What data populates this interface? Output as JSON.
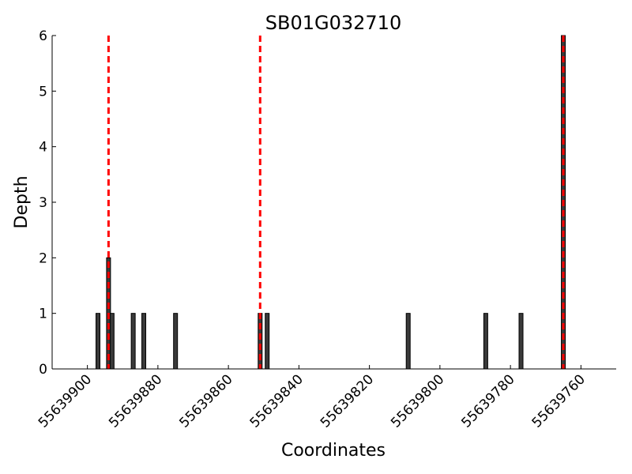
{
  "chart_data": {
    "type": "bar",
    "title": "SB01G032710",
    "xlabel": "Coordinates",
    "ylabel": "Depth",
    "x_axis_reversed": true,
    "xlim": [
      55639910,
      55639750
    ],
    "ylim": [
      0,
      6
    ],
    "grid": false,
    "bar_color": "#3a3a3a",
    "marker_color": "#ff0000",
    "x_ticks": [
      55639900,
      55639880,
      55639860,
      55639840,
      55639820,
      55639800,
      55639780,
      55639760
    ],
    "x_tick_labels": [
      "55639900",
      "55639880",
      "55639860",
      "55639840",
      "55639820",
      "55639800",
      "55639780",
      "55639760"
    ],
    "y_ticks": [
      0,
      1,
      2,
      3,
      4,
      5,
      6
    ],
    "y_tick_labels": [
      "0",
      "1",
      "2",
      "3",
      "4",
      "5",
      "6"
    ],
    "points": [
      {
        "x": 55639897,
        "y": 1
      },
      {
        "x": 55639894,
        "y": 2
      },
      {
        "x": 55639893,
        "y": 1
      },
      {
        "x": 55639887,
        "y": 1
      },
      {
        "x": 55639884,
        "y": 1
      },
      {
        "x": 55639875,
        "y": 1
      },
      {
        "x": 55639851,
        "y": 1
      },
      {
        "x": 55639849,
        "y": 1
      },
      {
        "x": 55639809,
        "y": 1
      },
      {
        "x": 55639787,
        "y": 1
      },
      {
        "x": 55639777,
        "y": 1
      },
      {
        "x": 55639765,
        "y": 6
      }
    ],
    "marker_lines": [
      55639894,
      55639851,
      55639765
    ]
  }
}
